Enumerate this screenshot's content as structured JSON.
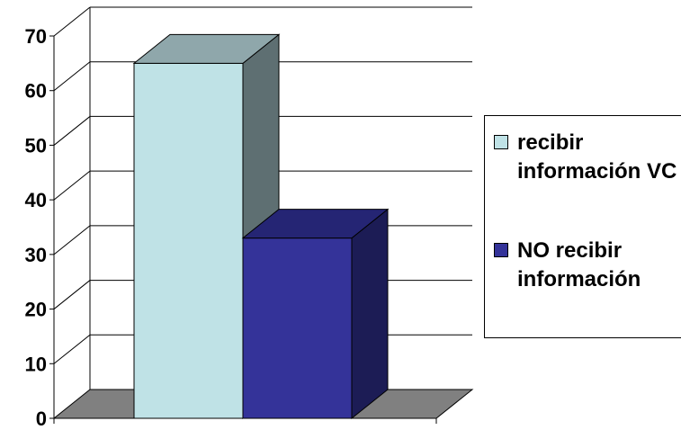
{
  "chart_data": {
    "type": "bar",
    "three_d": true,
    "categories": [
      ""
    ],
    "series": [
      {
        "name": "recibir información VC",
        "values": [
          65
        ],
        "color": "#bfe2e6",
        "side_color": "#5e6f72",
        "top_color": "#8fa7ab"
      },
      {
        "name": "NO recibir información",
        "values": [
          33
        ],
        "color": "#343399",
        "side_color": "#1c1c55",
        "top_color": "#252574"
      }
    ],
    "ylim": [
      0,
      70
    ],
    "yticks": [
      0,
      10,
      20,
      30,
      40,
      50,
      60,
      70
    ],
    "grid": true,
    "legend_position": "right",
    "title": "",
    "xlabel": "",
    "ylabel": "",
    "colors": {
      "floor": "#808080",
      "grid": "#000000",
      "background": "#ffffff"
    }
  }
}
